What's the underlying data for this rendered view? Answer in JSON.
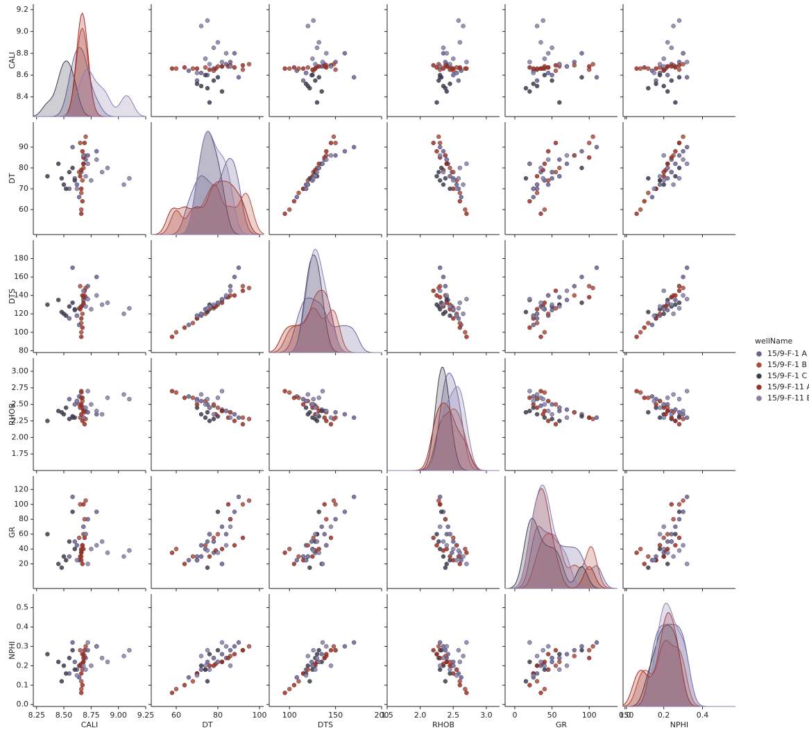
{
  "chart_data": {
    "type": "pairplot",
    "variables": [
      "CALI",
      "DT",
      "DTS",
      "RHOB",
      "GR",
      "NPHI"
    ],
    "axes": [
      {
        "lim": [
          8.22,
          9.25
        ],
        "xticks": [
          8.25,
          {
            "value": 8.5,
            "label": "8.50"
          },
          8.75,
          {
            "value": 9,
            "label": "9.00"
          },
          9.25
        ],
        "yticks": [
          8.4,
          8.6,
          8.8,
          {
            "value": 9,
            "label": "9.0"
          },
          9.2
        ]
      },
      {
        "lim": [
          48,
          102
        ],
        "xticks": [
          60,
          80,
          100
        ],
        "yticks": [
          60,
          70,
          80,
          90
        ]
      },
      {
        "lim": [
          78,
          200
        ],
        "xticks": [
          100,
          150,
          200
        ],
        "yticks": [
          80,
          100,
          120,
          140,
          160,
          180
        ]
      },
      {
        "lim": [
          1.5,
          3.2
        ],
        "xticks": [
          1.5,
          {
            "value": 2,
            "label": "2.0"
          },
          2.5,
          {
            "value": 3,
            "label": "3.0"
          }
        ],
        "yticks": [
          1.75,
          {
            "value": 2,
            "label": "2.00"
          },
          2.25,
          {
            "value": 2.5,
            "label": "2.50"
          },
          2.75,
          {
            "value": 3,
            "label": "3.00"
          }
        ]
      },
      {
        "lim": [
          -13,
          138
        ],
        "xticks": [
          0,
          50,
          100,
          150
        ],
        "yticks": [
          20,
          40,
          60,
          80,
          100,
          120
        ]
      },
      {
        "lim": [
          -0.01,
          0.57
        ],
        "xticks": [
          {
            "value": 0,
            "label": "0.0"
          },
          0.2,
          0.4
        ],
        "yticks": [
          {
            "value": 0,
            "label": "0.0"
          },
          0.1,
          0.2,
          0.3,
          0.4,
          0.5
        ]
      }
    ],
    "legend_title": "wellName",
    "series": [
      {
        "name": "15/9-F-1 A",
        "color": "#6a5f9a",
        "values": [
          [
            8.62,
            72,
            118,
            2.55,
            45,
            0.18
          ],
          [
            8.7,
            84,
            138,
            2.4,
            60,
            0.24
          ],
          [
            8.58,
            90,
            170,
            2.3,
            110,
            0.32
          ],
          [
            8.66,
            78,
            128,
            2.48,
            35,
            0.2
          ],
          [
            8.64,
            66,
            108,
            2.62,
            25,
            0.14
          ],
          [
            8.8,
            88,
            160,
            2.35,
            90,
            0.3
          ],
          [
            8.6,
            75,
            124,
            2.5,
            50,
            0.22
          ],
          [
            8.68,
            82,
            135,
            2.42,
            70,
            0.26
          ],
          [
            8.55,
            70,
            115,
            2.58,
            30,
            0.16
          ],
          [
            8.72,
            86,
            150,
            2.38,
            80,
            0.28
          ]
        ]
      },
      {
        "name": "15/9-F-1 B",
        "color": "#b34a3a",
        "values": [
          [
            8.66,
            60,
            100,
            2.68,
            40,
            0.08
          ],
          [
            8.68,
            80,
            130,
            2.45,
            60,
            0.22
          ],
          [
            8.65,
            92,
            150,
            2.3,
            100,
            0.28
          ],
          [
            8.67,
            74,
            120,
            2.55,
            45,
            0.18
          ],
          [
            8.69,
            86,
            140,
            2.38,
            80,
            0.25
          ],
          [
            8.66,
            68,
            110,
            2.6,
            30,
            0.12
          ],
          [
            8.7,
            95,
            148,
            2.28,
            105,
            0.3
          ],
          [
            8.64,
            78,
            126,
            2.5,
            55,
            0.2
          ]
        ]
      },
      {
        "name": "15/9-F-1 C",
        "color": "#3b3b50",
        "values": [
          [
            8.5,
            72,
            120,
            2.35,
            30,
            0.2
          ],
          [
            8.55,
            78,
            128,
            2.28,
            50,
            0.24
          ],
          [
            8.45,
            82,
            135,
            2.4,
            20,
            0.22
          ],
          [
            8.6,
            74,
            125,
            2.3,
            40,
            0.18
          ],
          [
            8.35,
            76,
            130,
            2.25,
            60,
            0.26
          ],
          [
            8.52,
            70,
            118,
            2.45,
            25,
            0.16
          ],
          [
            8.58,
            80,
            132,
            2.32,
            90,
            0.28
          ],
          [
            8.48,
            75,
            122,
            2.38,
            15,
            0.12
          ]
        ]
      },
      {
        "name": "15/9-F-11 A",
        "color": "#a52a1f",
        "values": [
          [
            8.66,
            58,
            95,
            2.7,
            35,
            0.06
          ],
          [
            8.68,
            82,
            132,
            2.4,
            40,
            0.22
          ],
          [
            8.67,
            88,
            140,
            2.25,
            45,
            0.26
          ],
          [
            8.65,
            76,
            125,
            2.45,
            30,
            0.2
          ],
          [
            8.69,
            92,
            145,
            2.2,
            55,
            0.28
          ],
          [
            8.66,
            70,
            115,
            2.5,
            25,
            0.16
          ],
          [
            8.68,
            85,
            138,
            2.3,
            100,
            0.24
          ],
          [
            8.67,
            64,
            105,
            2.6,
            20,
            0.1
          ],
          [
            8.66,
            79,
            128,
            2.35,
            38,
            0.21
          ]
        ]
      },
      {
        "name": "15/9-F-11 B",
        "color": "#8a7fb0",
        "values": [
          [
            8.75,
            74,
            125,
            2.5,
            40,
            0.2
          ],
          [
            8.9,
            80,
            132,
            2.6,
            35,
            0.22
          ],
          [
            9.05,
            72,
            120,
            2.65,
            30,
            0.25
          ],
          [
            8.7,
            76,
            128,
            2.45,
            60,
            0.18
          ],
          [
            8.8,
            84,
            140,
            2.4,
            45,
            0.3
          ],
          [
            8.62,
            70,
            118,
            2.55,
            25,
            0.15
          ],
          [
            8.85,
            78,
            130,
            2.35,
            50,
            0.24
          ],
          [
            8.72,
            82,
            136,
            2.7,
            20,
            0.32
          ],
          [
            9.1,
            75,
            126,
            2.58,
            38,
            0.28
          ],
          [
            8.68,
            86,
            145,
            2.3,
            70,
            0.2
          ]
        ]
      }
    ]
  }
}
